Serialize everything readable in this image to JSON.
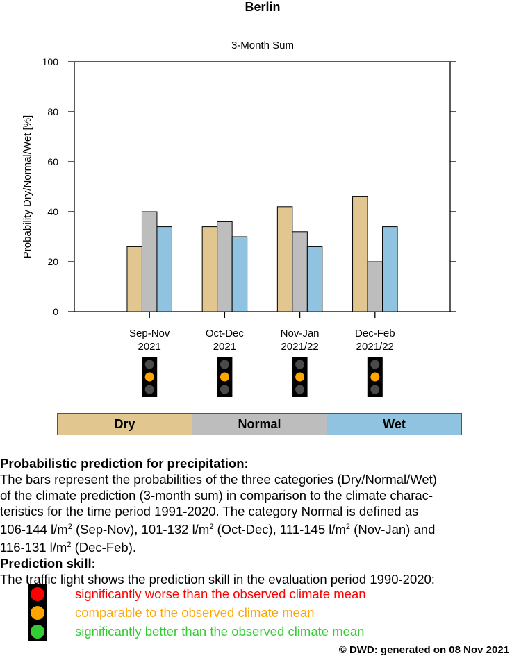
{
  "chart_data": {
    "type": "bar",
    "title": "Berlin",
    "subtitle": "3-Month Sum",
    "ylabel": "Probability Dry/Normal/Wet [%]",
    "ylim": [
      0,
      100
    ],
    "yticks": [
      0,
      20,
      40,
      60,
      80,
      100
    ],
    "categories": [
      {
        "line1": "Sep-Nov",
        "line2": "2021"
      },
      {
        "line1": "Oct-Dec",
        "line2": "2021"
      },
      {
        "line1": "Nov-Jan",
        "line2": "2021/22"
      },
      {
        "line1": "Dec-Feb",
        "line2": "2021/22"
      }
    ],
    "series": [
      {
        "name": "Dry",
        "color": "#e1c68f",
        "values": [
          26,
          34,
          42,
          46
        ]
      },
      {
        "name": "Normal",
        "color": "#bdbdbd",
        "values": [
          40,
          36,
          32,
          20
        ]
      },
      {
        "name": "Wet",
        "color": "#8fc3e0",
        "values": [
          34,
          30,
          26,
          34
        ]
      }
    ],
    "traffic_lights": [
      "orange",
      "orange",
      "orange",
      "orange"
    ]
  },
  "colors": {
    "red": "#ff0000",
    "orange": "#ffa500",
    "green": "#33cc33",
    "light_off": "#4a4a4a"
  },
  "legend": {
    "dry": "Dry",
    "normal": "Normal",
    "wet": "Wet"
  },
  "description": {
    "heading": "Probabilistic prediction for precipitation:",
    "line1": "The bars represent the probabilities of the three categories (Dry/Normal/Wet)",
    "line2": "of the climate prediction (3-month sum) in comparison to the climate charac-",
    "line3": "teristics for the time period 1991-2020. The category Normal is defined as",
    "line4a": "106-144 l/m",
    "line4b": " (Sep-Nov), 101-132 l/m",
    "line4c": " (Oct-Dec), 111-145 l/m",
    "line4d": " (Nov-Jan) and",
    "line5a": "116-131 l/m",
    "line5b": " (Dec-Feb).",
    "sup": "2"
  },
  "skill": {
    "heading": "Prediction skill:",
    "intro": "The traffic light shows the prediction skill in the evaluation period 1990-2020:",
    "worse": "significantly worse than the observed climate mean",
    "comparable": "comparable to the observed climate mean",
    "better": "significantly better than the observed climate mean"
  },
  "footer": "©  DWD: generated on 08 Nov 2021"
}
